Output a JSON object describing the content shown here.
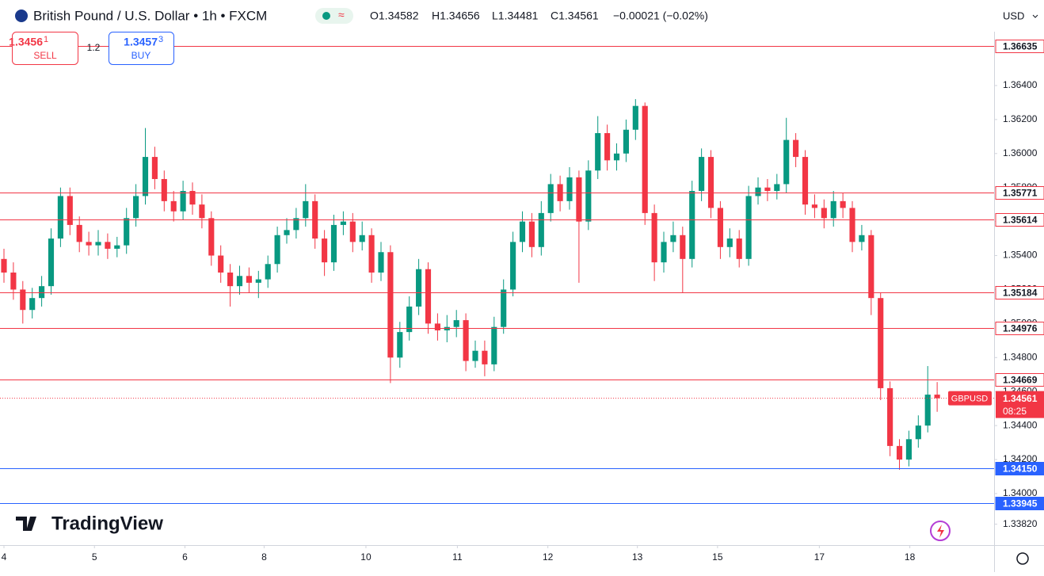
{
  "header": {
    "title": "British Pound / U.S. Dollar • 1h • FXCM",
    "ohlc": [
      "O1.34582",
      "H1.34656",
      "L1.34481",
      "C1.34561",
      "−0.00021 (−0.02%)"
    ],
    "sell_price": "1.3456",
    "sell_pip": "1",
    "sell_label": "SELL",
    "spread": "1.2",
    "buy_price": "1.3457",
    "buy_pip": "3",
    "buy_label": "BUY",
    "currency": "USD",
    "logo": "TradingView"
  },
  "chart_data": {
    "type": "candlestick",
    "symbol": "GBPUSD",
    "countdown": "08:25",
    "up_color": "#089981",
    "down_color": "#f23645",
    "grid": false,
    "open": [
      1.3538,
      1.353,
      1.352,
      1.3508,
      1.3515,
      1.3522,
      1.355,
      1.3575,
      1.3558,
      1.3548,
      1.3546,
      1.3548,
      1.3544,
      1.3546,
      1.3562,
      1.3575,
      1.3598,
      1.3585,
      1.3572,
      1.3566,
      1.3578,
      1.357,
      1.3562,
      1.354,
      1.353,
      1.3522,
      1.3528,
      1.3524,
      1.3526,
      1.3535,
      1.3552,
      1.3555,
      1.3562,
      1.3572,
      1.355,
      1.3536,
      1.3558,
      1.356,
      1.3548,
      1.3552,
      1.353,
      1.3542,
      1.348,
      1.3495,
      1.351,
      1.3532,
      1.35,
      1.3496,
      1.3498,
      1.3502,
      1.3478,
      1.3484,
      1.3476,
      1.3498,
      1.352,
      1.3548,
      1.356,
      1.3545,
      1.3565,
      1.3582,
      1.3572,
      1.3586,
      1.356,
      1.359,
      1.3612,
      1.3596,
      1.36,
      1.3614,
      1.3628,
      1.3565,
      1.3536,
      1.3548,
      1.3552,
      1.3538,
      1.3578,
      1.3598,
      1.3568,
      1.3545,
      1.355,
      1.3538,
      1.3575,
      1.358,
      1.3578,
      1.3582,
      1.3608,
      1.3598,
      1.357,
      1.3568,
      1.3562,
      1.3572,
      1.3568,
      1.3548,
      1.3552,
      1.3515,
      1.3462,
      1.3428,
      1.342,
      1.3432,
      1.344,
      1.34582
    ],
    "high": [
      1.3544,
      1.3536,
      1.3525,
      1.3521,
      1.3528,
      1.3556,
      1.358,
      1.358,
      1.3563,
      1.3554,
      1.3555,
      1.3553,
      1.3551,
      1.3568,
      1.3582,
      1.3615,
      1.3604,
      1.359,
      1.3578,
      1.3584,
      1.3583,
      1.3576,
      1.3566,
      1.3546,
      1.3535,
      1.3534,
      1.3533,
      1.3531,
      1.354,
      1.3557,
      1.3562,
      1.3568,
      1.3582,
      1.3576,
      1.3555,
      1.3564,
      1.3566,
      1.3565,
      1.356,
      1.3556,
      1.3548,
      1.3546,
      1.3501,
      1.3516,
      1.3538,
      1.3536,
      1.3506,
      1.3505,
      1.3508,
      1.3506,
      1.349,
      1.349,
      1.3504,
      1.3526,
      1.3554,
      1.3566,
      1.3565,
      1.3572,
      1.3588,
      1.3587,
      1.3592,
      1.359,
      1.3596,
      1.3622,
      1.3617,
      1.3606,
      1.362,
      1.3632,
      1.363,
      1.357,
      1.3554,
      1.356,
      1.3557,
      1.3584,
      1.3603,
      1.3602,
      1.3572,
      1.3556,
      1.3555,
      1.3581,
      1.3586,
      1.3585,
      1.3588,
      1.3621,
      1.3612,
      1.3602,
      1.3576,
      1.3573,
      1.3578,
      1.3577,
      1.3572,
      1.3558,
      1.3555,
      1.3518,
      1.3466,
      1.3432,
      1.3437,
      1.3446,
      1.3475,
      1.34656
    ],
    "low": [
      1.3524,
      1.3514,
      1.35,
      1.3503,
      1.351,
      1.3517,
      1.3545,
      1.3552,
      1.3542,
      1.354,
      1.354,
      1.3538,
      1.3539,
      1.3541,
      1.3557,
      1.357,
      1.3579,
      1.3566,
      1.356,
      1.3561,
      1.3564,
      1.3556,
      1.3534,
      1.3524,
      1.351,
      1.3517,
      1.3518,
      1.3515,
      1.3521,
      1.353,
      1.3547,
      1.355,
      1.3557,
      1.3544,
      1.3528,
      1.3531,
      1.3552,
      1.3542,
      1.3543,
      1.3524,
      1.3525,
      1.3465,
      1.3474,
      1.349,
      1.3505,
      1.3494,
      1.349,
      1.3489,
      1.3492,
      1.3472,
      1.3474,
      1.3469,
      1.3472,
      1.3494,
      1.3516,
      1.3542,
      1.3539,
      1.354,
      1.356,
      1.3566,
      1.3567,
      1.3524,
      1.3555,
      1.3585,
      1.359,
      1.359,
      1.3595,
      1.3608,
      1.3558,
      1.3525,
      1.353,
      1.3542,
      1.3518,
      1.3533,
      1.3572,
      1.3562,
      1.3538,
      1.3539,
      1.3533,
      1.3534,
      1.357,
      1.3572,
      1.3573,
      1.3577,
      1.3592,
      1.3564,
      1.3562,
      1.3556,
      1.3557,
      1.3562,
      1.3542,
      1.3543,
      1.3505,
      1.3455,
      1.3422,
      1.3414,
      1.3416,
      1.3427,
      1.3436,
      1.34481
    ],
    "close": [
      1.353,
      1.352,
      1.3508,
      1.3515,
      1.3522,
      1.355,
      1.3575,
      1.3558,
      1.3548,
      1.3546,
      1.3548,
      1.3544,
      1.3546,
      1.3562,
      1.3575,
      1.3598,
      1.3585,
      1.3572,
      1.3566,
      1.3578,
      1.357,
      1.3562,
      1.354,
      1.353,
      1.3522,
      1.3528,
      1.3524,
      1.3526,
      1.3535,
      1.3552,
      1.3555,
      1.3562,
      1.3572,
      1.355,
      1.3536,
      1.3558,
      1.356,
      1.3548,
      1.3552,
      1.353,
      1.3542,
      1.348,
      1.3495,
      1.351,
      1.3532,
      1.35,
      1.3496,
      1.3498,
      1.3502,
      1.3478,
      1.3484,
      1.3476,
      1.3498,
      1.352,
      1.3548,
      1.356,
      1.3545,
      1.3565,
      1.3582,
      1.3572,
      1.3586,
      1.356,
      1.359,
      1.3612,
      1.3596,
      1.36,
      1.3614,
      1.3628,
      1.3565,
      1.3536,
      1.3548,
      1.3552,
      1.3538,
      1.3578,
      1.3598,
      1.3568,
      1.3545,
      1.355,
      1.3538,
      1.3575,
      1.358,
      1.3578,
      1.3582,
      1.3608,
      1.3598,
      1.357,
      1.3568,
      1.3562,
      1.3572,
      1.3568,
      1.3548,
      1.3552,
      1.3515,
      1.3462,
      1.3428,
      1.342,
      1.3432,
      1.344,
      1.34582,
      1.34561
    ],
    "xlim": [
      -0.42,
      105.04
    ],
    "xticks": [
      {
        "value": 0,
        "label": "4"
      },
      {
        "value": 9.6,
        "label": "5"
      },
      {
        "value": 19.2,
        "label": "6"
      },
      {
        "value": 27.6,
        "label": "8"
      },
      {
        "value": 38.4,
        "label": "10"
      },
      {
        "value": 48.1,
        "label": "11"
      },
      {
        "value": 57.7,
        "label": "12"
      },
      {
        "value": 67.2,
        "label": "13"
      },
      {
        "value": 75.7,
        "label": "15"
      },
      {
        "value": 86.5,
        "label": "17"
      },
      {
        "value": 96.1,
        "label": "18"
      }
    ],
    "ylim": [
      1.33697,
      1.36903
    ],
    "yticks": [
      {
        "value": 1.3382,
        "label": "1.33820"
      },
      {
        "value": 1.34,
        "label": "1.34000"
      },
      {
        "value": 1.342,
        "label": "1.34200"
      },
      {
        "value": 1.344,
        "label": "1.34400"
      },
      {
        "value": 1.346,
        "label": "1.34600"
      },
      {
        "value": 1.348,
        "label": "1.34800"
      },
      {
        "value": 1.35,
        "label": "1.35000"
      },
      {
        "value": 1.352,
        "label": "1.35200"
      },
      {
        "value": 1.354,
        "label": "1.35400"
      },
      {
        "value": 1.356,
        "label": "1.35600"
      },
      {
        "value": 1.358,
        "label": "1.35800"
      },
      {
        "value": 1.36,
        "label": "1.36000"
      },
      {
        "value": 1.362,
        "label": "1.36200"
      },
      {
        "value": 1.364,
        "label": "1.36400"
      }
    ],
    "levels": [
      {
        "value": 1.36635,
        "label": "1.36635",
        "color": "#f23645"
      },
      {
        "value": 1.35771,
        "label": "1.35771",
        "color": "#f23645"
      },
      {
        "value": 1.35614,
        "label": "1.35614",
        "color": "#f23645"
      },
      {
        "value": 1.35184,
        "label": "1.35184",
        "color": "#f23645"
      },
      {
        "value": 1.34976,
        "label": "1.34976",
        "color": "#f23645"
      },
      {
        "value": 1.34669,
        "label": "1.34669",
        "color": "#f23645"
      },
      {
        "value": 1.3415,
        "label": "1.34150",
        "color": "#2962ff"
      },
      {
        "value": 1.33945,
        "label": "1.33945",
        "color": "#2962ff"
      }
    ]
  }
}
